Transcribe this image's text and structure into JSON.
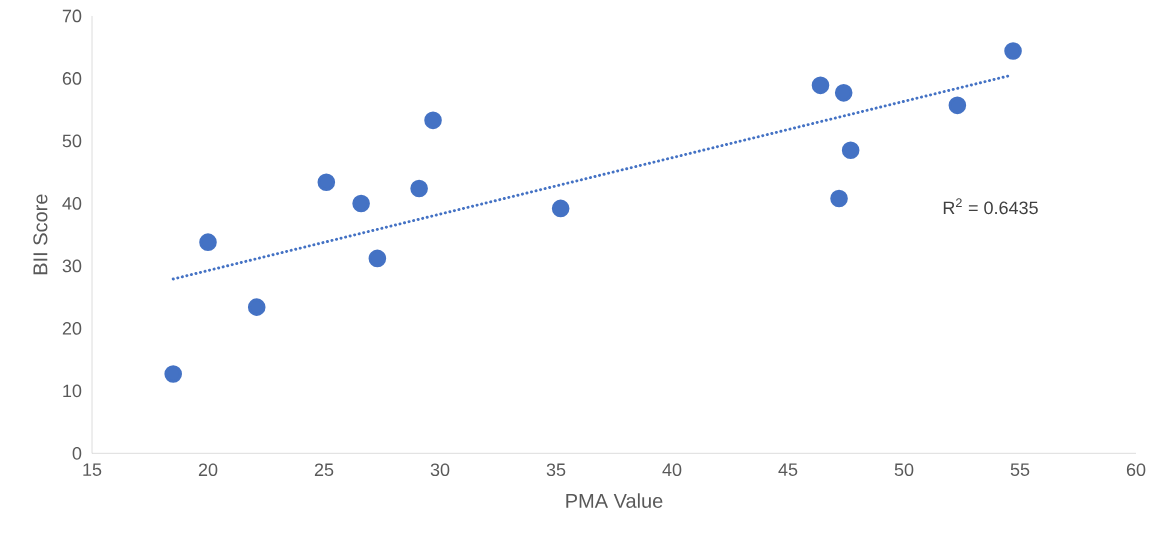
{
  "chart_data": {
    "type": "scatter",
    "xlabel": "PMA Value",
    "ylabel": "BII Score",
    "xlim": [
      15,
      60
    ],
    "ylim": [
      0,
      70
    ],
    "xticks": [
      15,
      20,
      25,
      30,
      35,
      40,
      45,
      50,
      55,
      60
    ],
    "yticks": [
      0,
      10,
      20,
      30,
      40,
      50,
      60,
      70
    ],
    "annotations": [
      "R$^{2}$ = 0.6435"
    ],
    "series": [
      {
        "color": "#4472c4",
        "marker": "circle",
        "x": [
          18.5,
          20.0,
          22.1,
          25.1,
          26.6,
          27.3,
          29.1,
          29.7,
          35.2,
          46.4,
          47.4,
          47.2,
          47.7,
          52.3,
          54.7
        ],
        "values": [
          12.7,
          33.8,
          23.4,
          43.4,
          40.0,
          31.2,
          42.4,
          53.3,
          39.2,
          58.9,
          57.7,
          40.8,
          48.5,
          55.7,
          64.4
        ]
      },
      {
        "type": "line",
        "color": "#4472c4",
        "marker": "none",
        "line_style": "dotted",
        "x": [
          18.5,
          54.5
        ],
        "values": [
          27.9,
          60.4
        ]
      }
    ]
  }
}
